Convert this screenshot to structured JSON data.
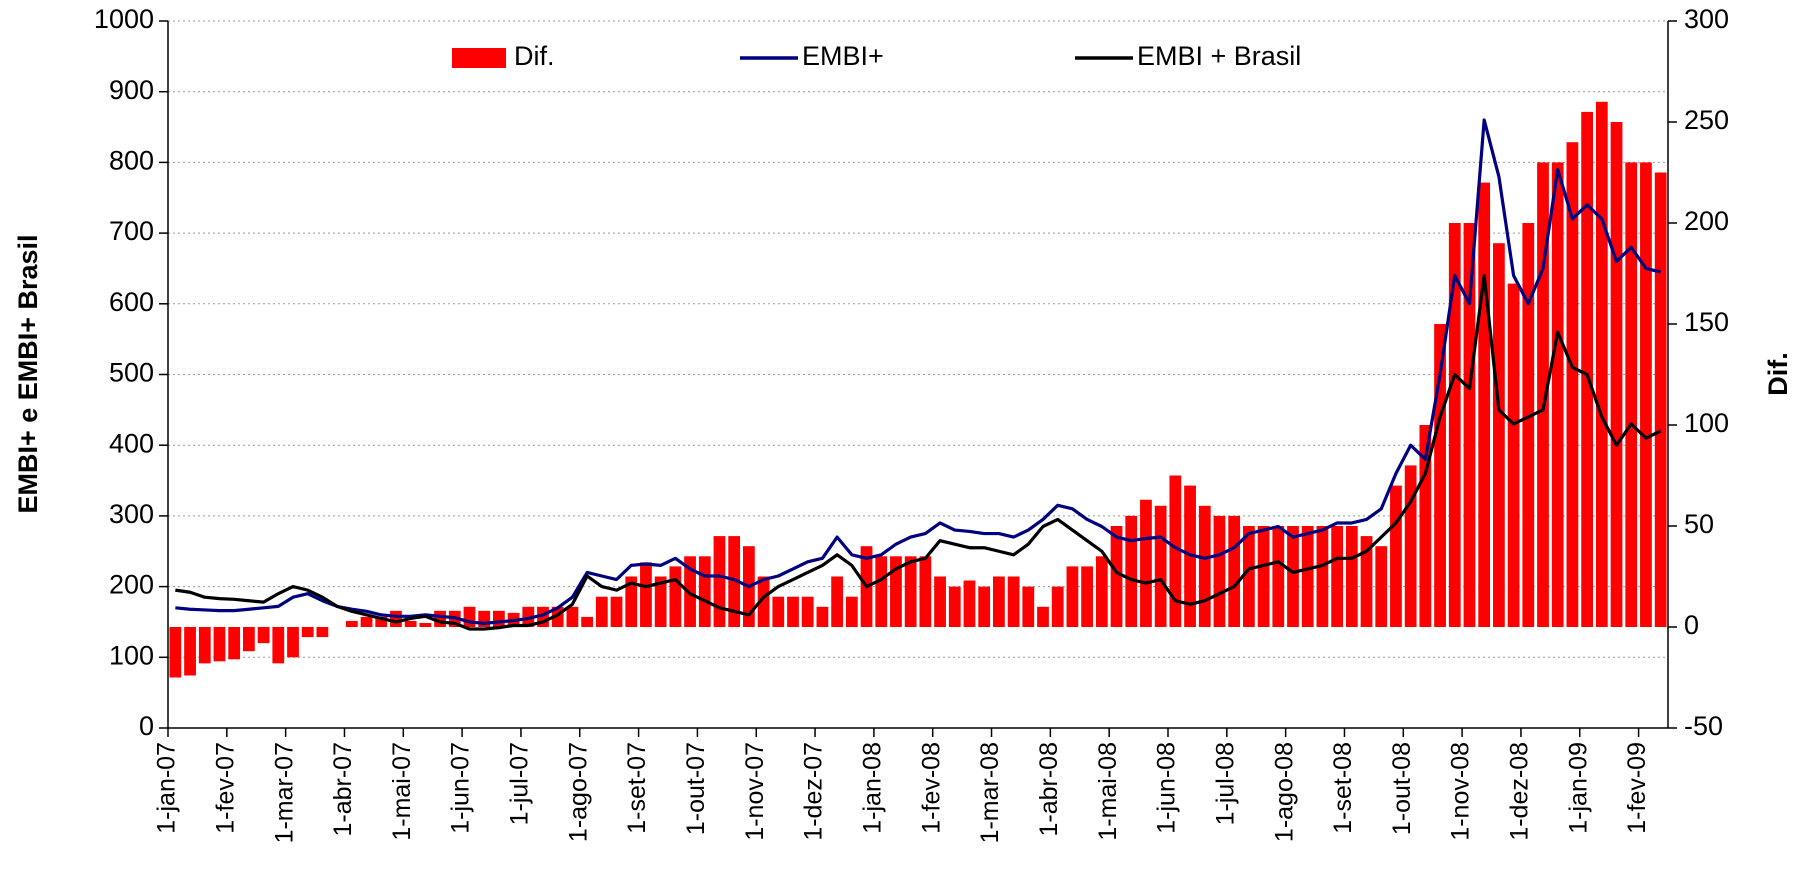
{
  "chart_data": {
    "type": "combo",
    "y_axis_label": "EMBI+ e EMBI+ Brasil",
    "y2_axis_label": "Dif.",
    "ylim": [
      0,
      1000
    ],
    "yticks": [
      0,
      100,
      200,
      300,
      400,
      500,
      600,
      700,
      800,
      900,
      1000
    ],
    "y2lim": [
      -50,
      300
    ],
    "y2ticks": [
      -50,
      0,
      50,
      100,
      150,
      200,
      250,
      300
    ],
    "grid": true,
    "legend": "top",
    "categories": [
      "1-jan-07",
      null,
      null,
      null,
      "1-fev-07",
      null,
      null,
      null,
      "1-mar-07",
      null,
      null,
      null,
      "1-abr-07",
      null,
      null,
      null,
      "1-mai-07",
      null,
      null,
      null,
      "1-jun-07",
      null,
      null,
      null,
      "1-jul-07",
      null,
      null,
      null,
      "1-ago-07",
      null,
      null,
      null,
      "1-set-07",
      null,
      null,
      null,
      "1-out-07",
      null,
      null,
      null,
      "1-nov-07",
      null,
      null,
      null,
      "1-dez-07",
      null,
      null,
      null,
      "1-jan-08",
      null,
      null,
      null,
      "1-fev-08",
      null,
      null,
      null,
      "1-mar-08",
      null,
      null,
      null,
      "1-abr-08",
      null,
      null,
      null,
      "1-mai-08",
      null,
      null,
      null,
      "1-jun-08",
      null,
      null,
      null,
      "1-jul-08",
      null,
      null,
      null,
      "1-ago-08",
      null,
      null,
      null,
      "1-set-08",
      null,
      null,
      null,
      "1-out-08",
      null,
      null,
      null,
      "1-nov-08",
      null,
      null,
      null,
      "1-dez-08",
      null,
      null,
      null,
      "1-jan-09",
      null,
      null,
      null,
      "1-fev-09",
      null
    ],
    "series": [
      {
        "name": "Dif.",
        "type": "bar",
        "axis": "y2",
        "color": "#ff0000",
        "values": [
          -25,
          -24,
          -18,
          -17,
          -16,
          -12,
          -8,
          -18,
          -15,
          -5,
          -5,
          0,
          3,
          5,
          5,
          8,
          3,
          2,
          8,
          8,
          10,
          8,
          8,
          7,
          10,
          10,
          10,
          10,
          5,
          15,
          15,
          25,
          32,
          25,
          30,
          35,
          35,
          45,
          45,
          40,
          25,
          15,
          15,
          15,
          10,
          25,
          15,
          40,
          35,
          35,
          35,
          35,
          25,
          20,
          23,
          20,
          25,
          25,
          20,
          10,
          20,
          30,
          30,
          35,
          50,
          55,
          63,
          60,
          75,
          70,
          60,
          55,
          55,
          50,
          50,
          50,
          50,
          50,
          50,
          50,
          50,
          45,
          40,
          70,
          80,
          100,
          150,
          200,
          200,
          220,
          190,
          170,
          200,
          230,
          230,
          240,
          255,
          260,
          250,
          230,
          230,
          225
        ]
      },
      {
        "name": "EMBI+",
        "type": "line",
        "color": "#000080",
        "values": [
          170,
          168,
          167,
          166,
          166,
          168,
          170,
          172,
          185,
          190,
          180,
          172,
          168,
          165,
          160,
          158,
          158,
          160,
          158,
          156,
          150,
          148,
          150,
          152,
          155,
          160,
          170,
          185,
          220,
          215,
          210,
          230,
          232,
          230,
          240,
          225,
          215,
          215,
          210,
          200,
          210,
          215,
          225,
          235,
          240,
          270,
          245,
          240,
          245,
          260,
          270,
          275,
          290,
          280,
          278,
          275,
          275,
          270,
          280,
          295,
          315,
          310,
          295,
          285,
          270,
          265,
          268,
          270,
          255,
          245,
          240,
          245,
          255,
          275,
          280,
          285,
          270,
          275,
          280,
          290,
          290,
          295,
          310,
          360,
          400,
          380,
          500,
          640,
          600,
          860,
          780,
          640,
          600,
          650,
          790,
          720,
          740,
          720,
          660,
          680,
          650,
          645
        ]
      },
      {
        "name": "EMBI + Brasil",
        "type": "line",
        "color": "#000000",
        "values": [
          195,
          192,
          185,
          183,
          182,
          180,
          178,
          190,
          200,
          195,
          185,
          172,
          165,
          160,
          155,
          150,
          155,
          158,
          150,
          148,
          140,
          140,
          142,
          145,
          145,
          150,
          160,
          175,
          215,
          200,
          195,
          205,
          200,
          205,
          210,
          190,
          180,
          170,
          165,
          160,
          185,
          200,
          210,
          220,
          230,
          245,
          230,
          200,
          210,
          225,
          235,
          240,
          265,
          260,
          255,
          255,
          250,
          245,
          260,
          285,
          295,
          280,
          265,
          250,
          220,
          210,
          205,
          210,
          180,
          175,
          180,
          190,
          200,
          225,
          230,
          235,
          220,
          225,
          230,
          240,
          240,
          250,
          270,
          290,
          320,
          360,
          440,
          500,
          480,
          640,
          450,
          430,
          440,
          450,
          560,
          510,
          500,
          440,
          400,
          430,
          410,
          420
        ]
      }
    ]
  }
}
